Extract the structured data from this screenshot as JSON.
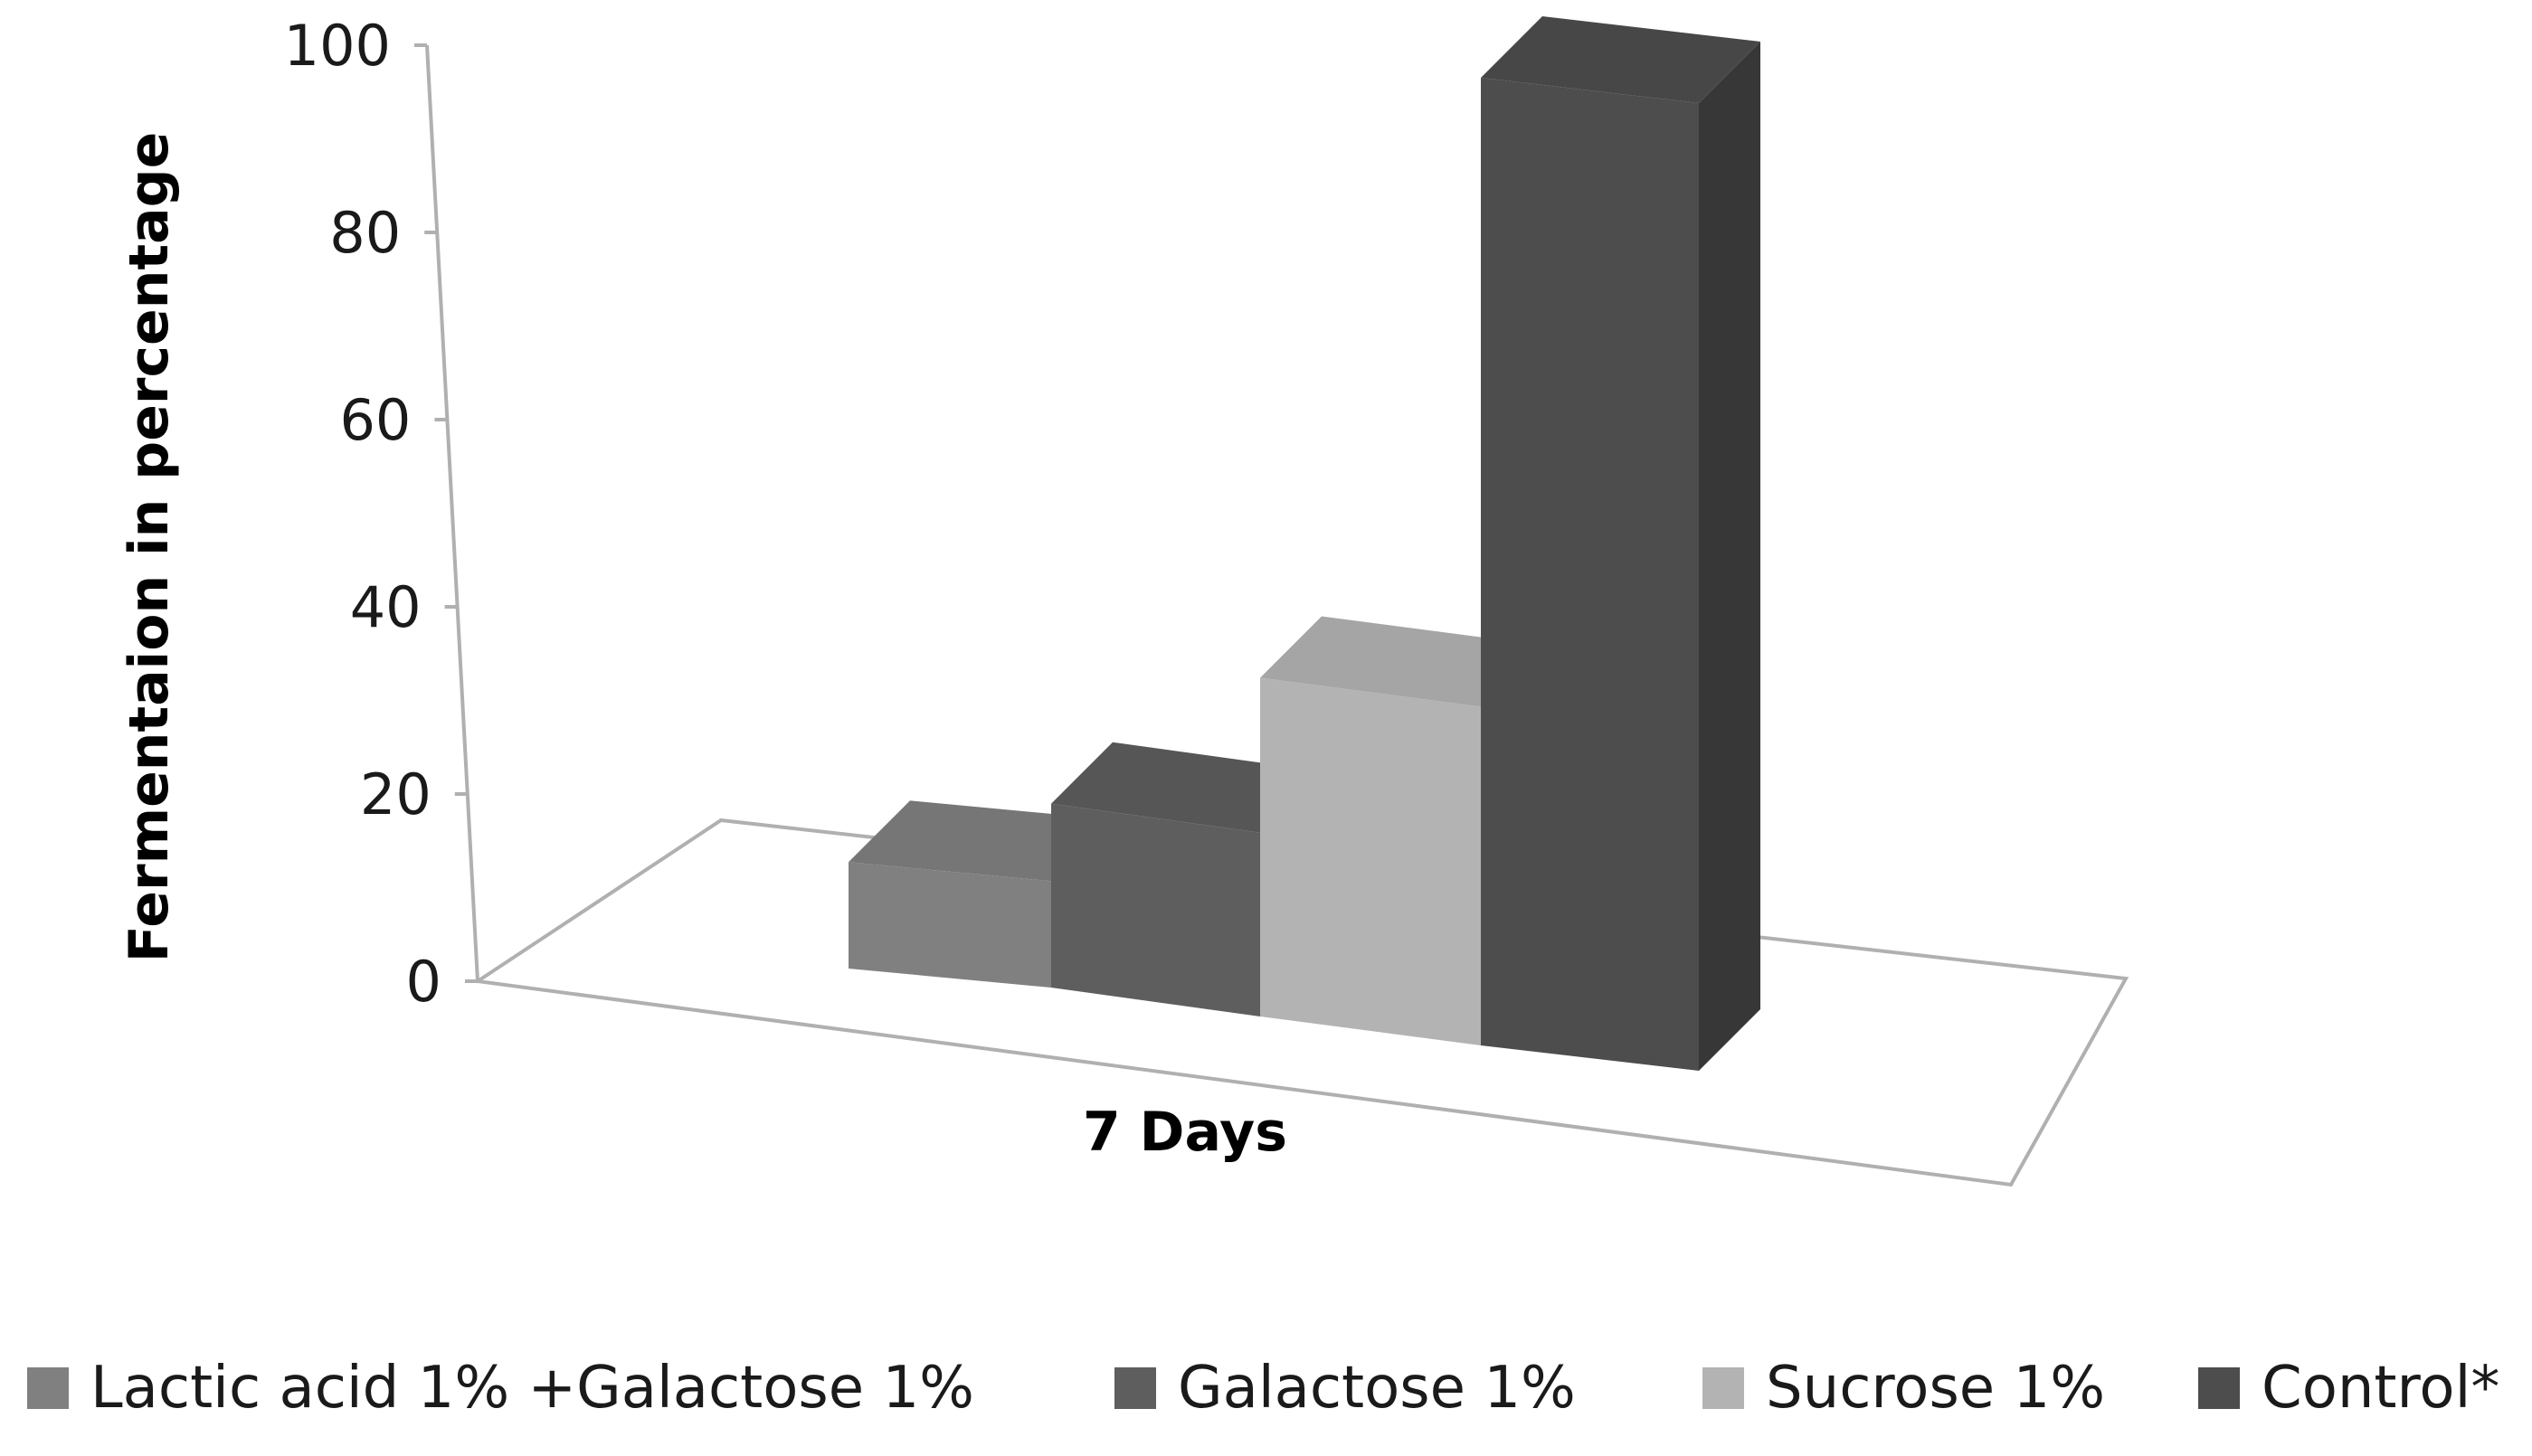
{
  "chart_data": {
    "type": "bar",
    "categories": [
      "7 Days"
    ],
    "series": [
      {
        "name": "Lactic acid 1% +Galactose 1%",
        "values": [
          11
        ],
        "color": "#808080"
      },
      {
        "name": "Galactose 1%",
        "values": [
          19
        ],
        "color": "#5e5e5e"
      },
      {
        "name": "Sucrose 1%",
        "values": [
          35
        ],
        "color": "#b3b3b3"
      },
      {
        "name": "Control*",
        "values": [
          100
        ],
        "color": "#4d4d4d"
      }
    ],
    "title": "",
    "xlabel": "",
    "ylabel": "Fermentaion in percentage",
    "ylim": [
      0,
      100
    ],
    "yticks": [
      "0",
      "20",
      "40",
      "60",
      "80",
      "100"
    ],
    "grid": false,
    "legend_position": "bottom",
    "style": "3d"
  }
}
